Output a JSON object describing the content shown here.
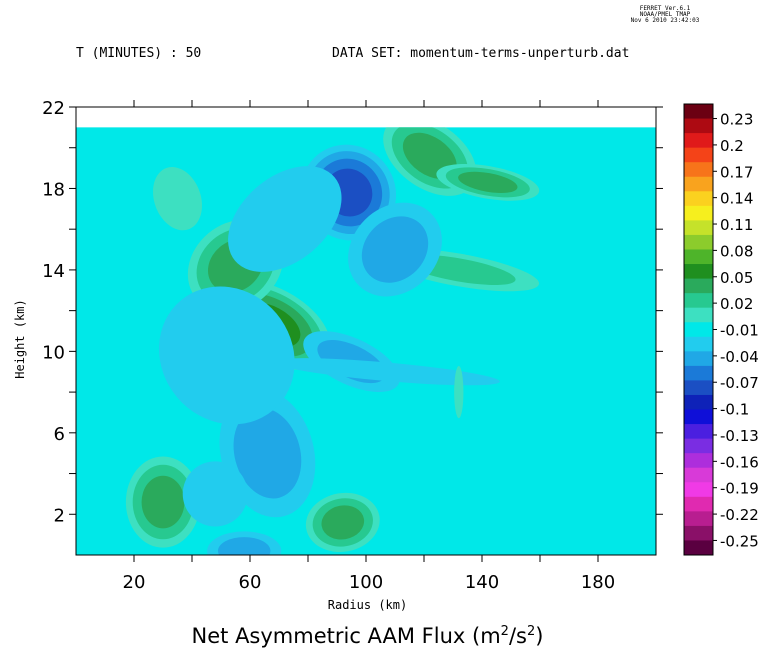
{
  "stamp": {
    "line1": "FERRET  Ver.6.1",
    "line2": "NOAA/PMEL TMAP",
    "line3": "Nov  6 2010 23:42:03"
  },
  "header": {
    "left": "T (MINUTES) : 50",
    "right": "DATA SET: momentum-terms-unperturb.dat"
  },
  "title": {
    "main": "Net Asymmetric AAM Flux (m",
    "unit_sup1": "2",
    "mid": "/s",
    "unit_sup2": "2",
    "end": ")"
  },
  "chart_data": {
    "type": "heatmap",
    "title": "Net Asymmetric AAM Flux (m2/s2)",
    "xlabel": "Radius (km)",
    "ylabel": "Height (km)",
    "xlim": [
      0,
      200
    ],
    "ylim": [
      0,
      22
    ],
    "x_ticks": [
      "20",
      "60",
      "100",
      "140",
      "180"
    ],
    "y_ticks": [
      "2",
      "6",
      "10",
      "14",
      "18",
      "22"
    ],
    "data_top_height": 21,
    "background_level": -0.01,
    "colorbar": {
      "levels": [
        "0.23",
        "0.2",
        "0.17",
        "0.14",
        "0.11",
        "0.08",
        "0.05",
        "0.02",
        "-0.01",
        "-0.04",
        "-0.07",
        "-0.1",
        "-0.13",
        "-0.16",
        "-0.19",
        "-0.22",
        "-0.25"
      ],
      "colors": [
        "#6b0012",
        "#ad0a12",
        "#e01a1a",
        "#f44318",
        "#f7741a",
        "#f9a31e",
        "#fbd11f",
        "#f6ef1e",
        "#c5e22a",
        "#8ccc2c",
        "#4eb42a",
        "#1f8f1f",
        "#2aaa5c",
        "#27c990",
        "#3de0c1",
        "#00e8e8",
        "#22ccee",
        "#20a8e6",
        "#1b7ad8",
        "#1b4fc3",
        "#0e22b8",
        "#0f0fd8",
        "#4b1fe0",
        "#7a2de2",
        "#ad2edc",
        "#d83ad8",
        "#f03ae6",
        "#e02ab0",
        "#b81e90",
        "#8a1068",
        "#5a0040"
      ]
    },
    "features": [
      {
        "x": 67,
        "y": 11.3,
        "sx": 8,
        "sy": 2.0,
        "angle": 62,
        "value": 0.05
      },
      {
        "x": 55,
        "y": 14.2,
        "sx": 11,
        "sy": 1.3,
        "angle": 40,
        "value": 0.03
      },
      {
        "x": 30,
        "y": 2.6,
        "sx": 8,
        "sy": 1.4,
        "angle": 0,
        "value": 0.04
      },
      {
        "x": 92,
        "y": 1.6,
        "sx": 8,
        "sy": 0.9,
        "angle": 10,
        "value": 0.03
      },
      {
        "x": 122,
        "y": 19.6,
        "sx": 7,
        "sy": 1.6,
        "angle": 55,
        "value": 0.03
      },
      {
        "x": 142,
        "y": 18.3,
        "sx": 3.5,
        "sy": 1.6,
        "angle": 80,
        "value": 0.03
      },
      {
        "x": 132,
        "y": 14.0,
        "sx": 3.5,
        "sy": 2.5,
        "angle": 80,
        "value": 0.015
      },
      {
        "x": 35,
        "y": 17.5,
        "sx": 5,
        "sy": 1,
        "angle": 20,
        "value": 0.012
      },
      {
        "x": 94,
        "y": 17.8,
        "sx": 10,
        "sy": 1.5,
        "angle": 40,
        "value": -0.07
      },
      {
        "x": 110,
        "y": 15.0,
        "sx": 11,
        "sy": 1.3,
        "angle": 45,
        "value": -0.04
      },
      {
        "x": 95,
        "y": 9.5,
        "sx": 5,
        "sy": 1.6,
        "angle": 65,
        "value": -0.035
      },
      {
        "x": 66,
        "y": 5.0,
        "sx": 10,
        "sy": 2.0,
        "angle": 15,
        "value": -0.035
      },
      {
        "x": 48,
        "y": 3.0,
        "sx": 7,
        "sy": 1.0,
        "angle": 0,
        "value": -0.025
      },
      {
        "x": 52,
        "y": 9.8,
        "sx": 14,
        "sy": 2.2,
        "angle": 40,
        "value": -0.025
      },
      {
        "x": 72,
        "y": 16.5,
        "sx": 14,
        "sy": 1.3,
        "angle": 40,
        "value": -0.02
      },
      {
        "x": 58,
        "y": 0.2,
        "sx": 8,
        "sy": 0.6,
        "angle": 0,
        "value": -0.035
      },
      {
        "x": 107,
        "y": 9.0,
        "sx": 2,
        "sy": 3.5,
        "angle": 85,
        "value": -0.02
      },
      {
        "x": 132,
        "y": 8.0,
        "sx": 1,
        "sy": 0.8,
        "angle": 0,
        "value": 0.008
      }
    ]
  }
}
